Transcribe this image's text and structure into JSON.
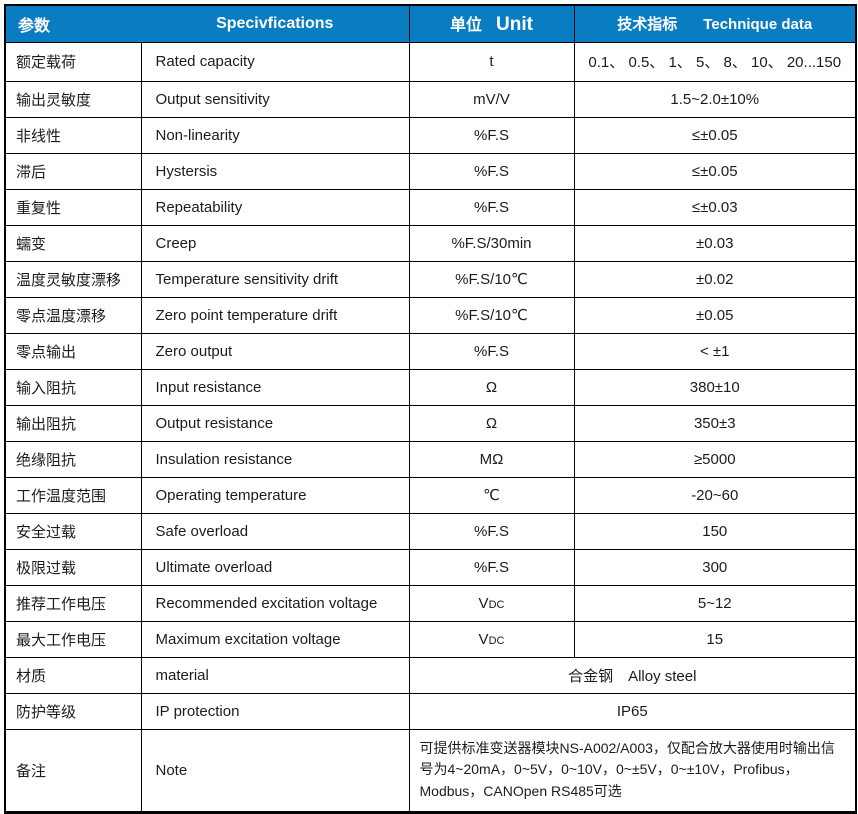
{
  "colors": {
    "header_bg": "#0a7dc2",
    "header_text": "#ffffff",
    "body_text": "#1c1c1c",
    "border": "#000000"
  },
  "table": {
    "header": {
      "col1": "参数",
      "col2": "Specivfications",
      "col3_cn": "单位",
      "col3_en": "Unit",
      "col4_cn": "技术指标",
      "col4_en": "Technique data"
    },
    "rows": [
      {
        "cn": "额定载荷",
        "en": "Rated capacity",
        "unit": "t",
        "unit_small": "",
        "value": "0.1、 0.5、 1、 5、 8、 10、 20...150"
      },
      {
        "cn": "输出灵敏度",
        "en": "Output sensitivity",
        "unit": "mV/V",
        "unit_small": "",
        "value": "1.5~2.0±10%"
      },
      {
        "cn": "非线性",
        "en": "Non-linearity",
        "unit": "%F.S",
        "unit_small": "",
        "value": "≤±0.05"
      },
      {
        "cn": "滞后",
        "en": "Hystersis",
        "unit": "%F.S",
        "unit_small": "",
        "value": "≤±0.05"
      },
      {
        "cn": "重复性",
        "en": "Repeatability",
        "unit": "%F.S",
        "unit_small": "",
        "value": "≤±0.03"
      },
      {
        "cn": "蠕变",
        "en": "Creep",
        "unit": "%F.S/30min",
        "unit_small": "",
        "value": "±0.03"
      },
      {
        "cn": "温度灵敏度漂移",
        "en": "Temperature sensitivity drift",
        "unit": "%F.S/10℃",
        "unit_small": "",
        "value": "±0.02"
      },
      {
        "cn": "零点温度漂移",
        "en": "Zero point temperature drift",
        "unit": "%F.S/10℃",
        "unit_small": "",
        "value": "±0.05"
      },
      {
        "cn": "零点输出",
        "en": "Zero output",
        "unit": "%F.S",
        "unit_small": "",
        "value": "< ±1"
      },
      {
        "cn": "输入阻抗",
        "en": "Input resistance",
        "unit": "Ω",
        "unit_small": "",
        "value": "380±10"
      },
      {
        "cn": "输出阻抗",
        "en": "Output resistance",
        "unit": "Ω",
        "unit_small": "",
        "value": "350±3"
      },
      {
        "cn": "绝缘阻抗",
        "en": "Insulation resistance",
        "unit": "MΩ",
        "unit_small": "",
        "value": "≥5000"
      },
      {
        "cn": "工作温度范围",
        "en": "Operating temperature",
        "unit": "℃",
        "unit_small": "",
        "value": "-20~60"
      },
      {
        "cn": "安全过载",
        "en": "Safe overload",
        "unit": "%F.S",
        "unit_small": "",
        "value": "150"
      },
      {
        "cn": "极限过载",
        "en": "Ultimate overload",
        "unit": "%F.S",
        "unit_small": "",
        "value": "300"
      },
      {
        "cn": "推荐工作电压",
        "en": "Recommended excitation voltage",
        "unit": "V",
        "unit_small": "DC",
        "value": "5~12"
      },
      {
        "cn": "最大工作电压",
        "en": "Maximum excitation voltage",
        "unit": "V",
        "unit_small": "DC",
        "value": "15"
      },
      {
        "cn": "材质",
        "en": "material",
        "unit": "",
        "unit_small": "",
        "value": "合金钢　Alloy steel"
      },
      {
        "cn": "防护等级",
        "en": "IP protection",
        "unit": "",
        "unit_small": "",
        "value": "IP65"
      },
      {
        "cn": "备注",
        "en": "Note",
        "unit": "",
        "unit_small": "",
        "value": "可提供标准变送器模块NS-A002/A003，仅配合放大器使用时输出信号为4~20mA，0~5V，0~10V，0~±5V，0~±10V，Profibus，Modbus，CANOpen RS485可选"
      }
    ]
  }
}
